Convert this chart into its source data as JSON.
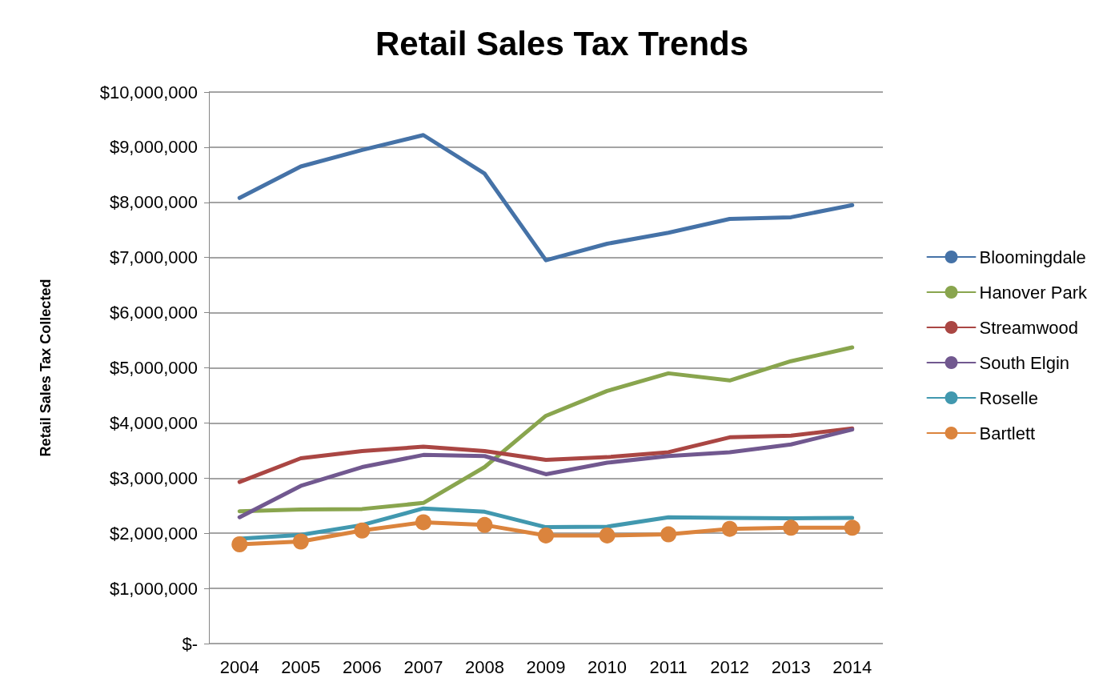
{
  "chart_data": {
    "type": "line",
    "title": "Retail Sales Tax Trends",
    "ylabel": "Retail Sales Tax Collected",
    "categories": [
      "2004",
      "2005",
      "2006",
      "2007",
      "2008",
      "2009",
      "2010",
      "2011",
      "2012",
      "2013",
      "2014"
    ],
    "series": [
      {
        "name": "Bloomingdale",
        "color": "#4572a7",
        "marker": "none",
        "values": [
          8080000,
          8650000,
          8950000,
          9220000,
          8520000,
          6950000,
          7250000,
          7450000,
          7700000,
          7730000,
          7950000
        ]
      },
      {
        "name": "Hanover Park",
        "color": "#89a54e",
        "marker": "none",
        "values": [
          2400000,
          2430000,
          2440000,
          2550000,
          3200000,
          4130000,
          4580000,
          4900000,
          4770000,
          5120000,
          5370000
        ]
      },
      {
        "name": "Streamwood",
        "color": "#aa4643",
        "marker": "none",
        "values": [
          2930000,
          3360000,
          3490000,
          3570000,
          3490000,
          3330000,
          3380000,
          3470000,
          3740000,
          3770000,
          3900000
        ]
      },
      {
        "name": "South Elgin",
        "color": "#71588f",
        "marker": "none",
        "values": [
          2290000,
          2860000,
          3200000,
          3420000,
          3400000,
          3070000,
          3280000,
          3400000,
          3470000,
          3610000,
          3880000
        ]
      },
      {
        "name": "Roselle",
        "color": "#4198af",
        "marker": "none",
        "values": [
          1900000,
          1970000,
          2150000,
          2450000,
          2390000,
          2110000,
          2120000,
          2290000,
          2280000,
          2270000,
          2280000
        ]
      },
      {
        "name": "Bartlett",
        "color": "#db843d",
        "marker": "circle",
        "values": [
          1800000,
          1850000,
          2050000,
          2200000,
          2150000,
          1960000,
          1960000,
          1980000,
          2080000,
          2100000,
          2100000
        ]
      }
    ],
    "ylim": [
      0,
      10000000
    ],
    "yticks": [
      {
        "value": 0,
        "label": "$-"
      },
      {
        "value": 1000000,
        "label": "$1,000,000"
      },
      {
        "value": 2000000,
        "label": "$2,000,000"
      },
      {
        "value": 3000000,
        "label": "$3,000,000"
      },
      {
        "value": 4000000,
        "label": "$4,000,000"
      },
      {
        "value": 5000000,
        "label": "$5,000,000"
      },
      {
        "value": 6000000,
        "label": "$6,000,000"
      },
      {
        "value": 7000000,
        "label": "$7,000,000"
      },
      {
        "value": 8000000,
        "label": "$8,000,000"
      },
      {
        "value": 9000000,
        "label": "$9,000,000"
      },
      {
        "value": 10000000,
        "label": "$10,000,000"
      }
    ],
    "grid": "y",
    "legend": "right",
    "line_style": "solid"
  }
}
